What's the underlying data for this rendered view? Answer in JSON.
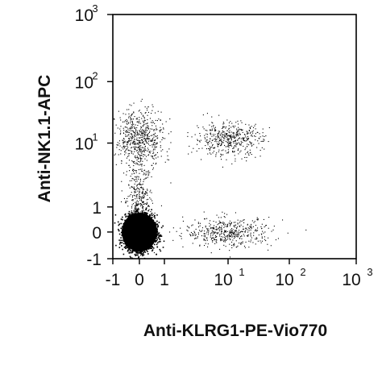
{
  "chart_data": {
    "type": "scatter",
    "xlabel": "Anti-KLRG1-PE-Vio770",
    "ylabel": "Anti-NK1.1-APC",
    "x_scale": "biexponential",
    "y_scale": "biexponential",
    "xlim": [
      -1,
      1000
    ],
    "ylim": [
      -1,
      1000
    ],
    "grid": false,
    "x_ticks": [
      {
        "value": -1,
        "label": "-1",
        "sup": ""
      },
      {
        "value": 0,
        "label": "0",
        "sup": ""
      },
      {
        "value": 1,
        "label": "1",
        "sup": ""
      },
      {
        "value": 10,
        "label": "10",
        "sup": "1"
      },
      {
        "value": 100,
        "label": "10",
        "sup": "2"
      },
      {
        "value": 1000,
        "label": "10",
        "sup": "3"
      }
    ],
    "y_ticks": [
      {
        "value": -1,
        "label": "-1",
        "sup": ""
      },
      {
        "value": 0,
        "label": "0",
        "sup": ""
      },
      {
        "value": 1,
        "label": "1",
        "sup": ""
      },
      {
        "value": 10,
        "label": "10",
        "sup": "1"
      },
      {
        "value": 100,
        "label": "10",
        "sup": "2"
      },
      {
        "value": 1000,
        "label": "10",
        "sup": "3"
      }
    ],
    "populations": [
      {
        "x_center": 0,
        "y_center": 0,
        "x_spread": 0.3,
        "y_spread": 0.35,
        "share": 0.62
      },
      {
        "x_center": 0,
        "y_center": 12,
        "x_spread": 0.5,
        "y_spread": 0.6,
        "share": 0.12
      },
      {
        "x_center": 10,
        "y_center": 12,
        "x_spread": 0.7,
        "y_spread": 0.35,
        "share": 0.09
      },
      {
        "x_center": 10,
        "y_center": 0,
        "x_spread": 0.9,
        "y_spread": 0.3,
        "share": 0.09
      },
      {
        "x_center": 0,
        "y_center": 1,
        "x_spread": 0.25,
        "y_spread": 0.9,
        "share": 0.08
      }
    ],
    "color": "#000000"
  }
}
